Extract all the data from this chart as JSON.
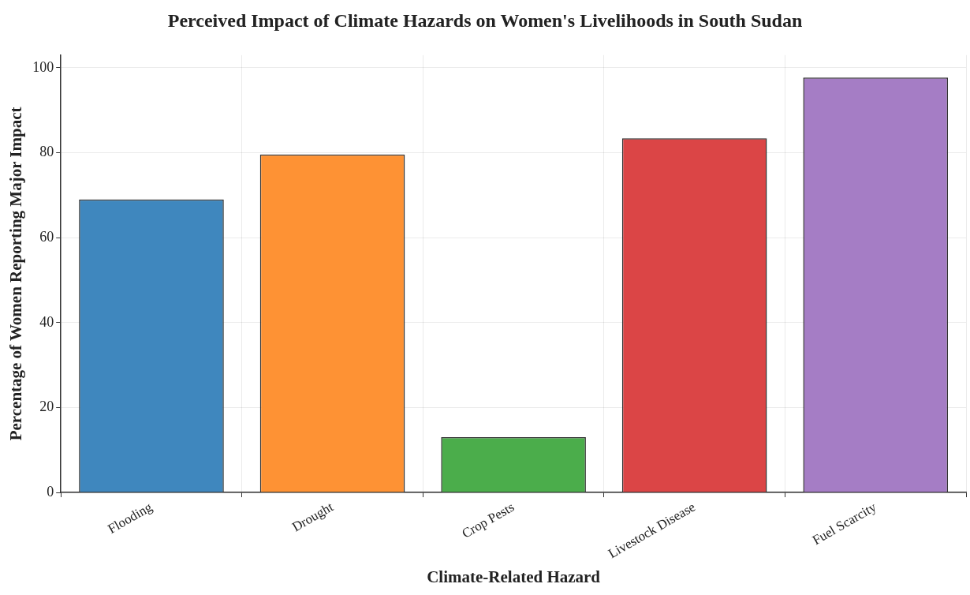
{
  "chart_data": {
    "type": "bar",
    "title": "Perceived Impact of Climate Hazards on Women's Livelihoods in South Sudan",
    "xlabel": "Climate-Related Hazard",
    "ylabel": "Percentage of Women Reporting Major Impact",
    "categories": [
      "Flooding",
      "Drought",
      "Crop Pests",
      "Livestock Disease",
      "Fuel Scarcity"
    ],
    "values": [
      69,
      79.6,
      13,
      83.4,
      97.7
    ],
    "colors": [
      "#3f87be",
      "#fe9234",
      "#4bad4b",
      "#db4546",
      "#a57dc5"
    ],
    "ylim": [
      0,
      103
    ],
    "yticks": [
      0,
      20,
      40,
      60,
      80,
      100
    ],
    "grid": true,
    "legend": false
  }
}
